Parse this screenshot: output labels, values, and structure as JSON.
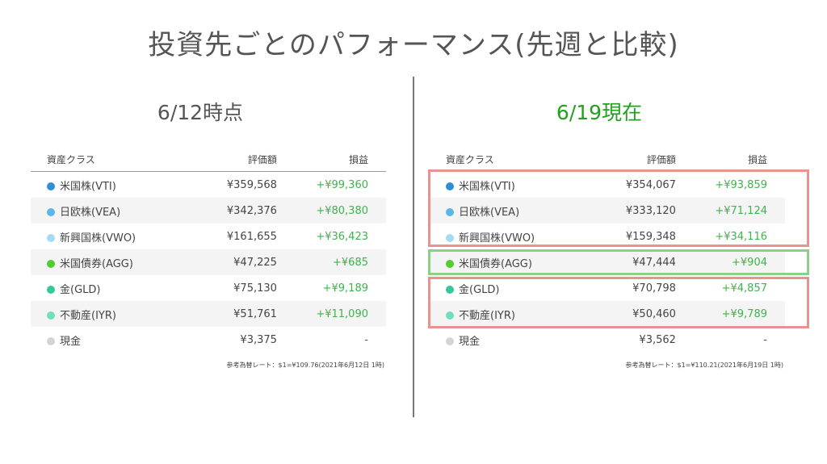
{
  "title": "投資先ごとのパフォーマンス(先週と比較)",
  "headers": {
    "asset": "資産クラス",
    "value": "評価額",
    "pl": "損益"
  },
  "panels": [
    {
      "subtitle": "6/12時点",
      "rows": [
        {
          "name": "米国株(VTI)",
          "color": "#2d8fd5",
          "value": "¥359,568",
          "pl": "+¥99,360"
        },
        {
          "name": "日欧株(VEA)",
          "color": "#5cb6e6",
          "value": "¥342,376",
          "pl": "+¥80,380"
        },
        {
          "name": "新興国株(VWO)",
          "color": "#a3dbf5",
          "value": "¥161,655",
          "pl": "+¥36,423"
        },
        {
          "name": "米国債券(AGG)",
          "color": "#55cc2e",
          "value": "¥47,225",
          "pl": "+¥685"
        },
        {
          "name": "金(GLD)",
          "color": "#33c99a",
          "value": "¥75,130",
          "pl": "+¥9,189"
        },
        {
          "name": "不動産(IYR)",
          "color": "#6fe0bd",
          "value": "¥51,761",
          "pl": "+¥11,090"
        },
        {
          "name": "現金",
          "color": "#d4d4d4",
          "value": "¥3,375",
          "pl": "-"
        }
      ],
      "note": "参考為替レート：$1=¥109.76(2021年6月12日 1時)"
    },
    {
      "subtitle": "6/19現在",
      "rows": [
        {
          "name": "米国株(VTI)",
          "color": "#2d8fd5",
          "value": "¥354,067",
          "pl": "+¥93,859"
        },
        {
          "name": "日欧株(VEA)",
          "color": "#5cb6e6",
          "value": "¥333,120",
          "pl": "+¥71,124"
        },
        {
          "name": "新興国株(VWO)",
          "color": "#a3dbf5",
          "value": "¥159,348",
          "pl": "+¥34,116"
        },
        {
          "name": "米国債券(AGG)",
          "color": "#55cc2e",
          "value": "¥47,444",
          "pl": "+¥904"
        },
        {
          "name": "金(GLD)",
          "color": "#33c99a",
          "value": "¥70,798",
          "pl": "+¥4,857"
        },
        {
          "name": "不動産(IYR)",
          "color": "#6fe0bd",
          "value": "¥50,460",
          "pl": "+¥9,789"
        },
        {
          "name": "現金",
          "color": "#d4d4d4",
          "value": "¥3,562",
          "pl": "-"
        }
      ],
      "note": "参考為替レート：$1=¥110.21(2021年6月19日 1時)"
    }
  ],
  "highlight_colors": {
    "red": "#e8938f",
    "green": "#8dcf86"
  }
}
